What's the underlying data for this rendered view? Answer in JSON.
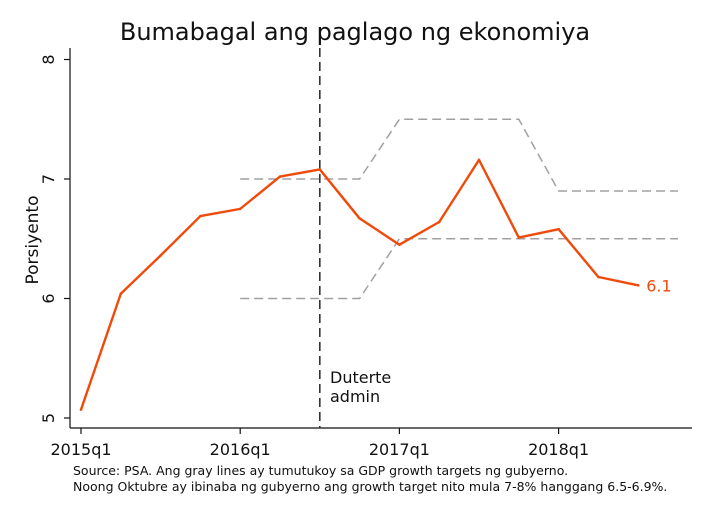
{
  "chart_data": {
    "type": "line",
    "title": "Bumabagal ang paglago ng ekonomiya",
    "ylabel": "Porsiyento",
    "xlabel": "",
    "ylim": [
      5,
      8
    ],
    "yticks": [
      5,
      6,
      7,
      8
    ],
    "xticks": [
      "2015q1",
      "2016q1",
      "2017q1",
      "2018q1"
    ],
    "x": [
      "2015q1",
      "2015q2",
      "2015q3",
      "2015q4",
      "2016q1",
      "2016q2",
      "2016q3",
      "2016q4",
      "2017q1",
      "2017q2",
      "2017q3",
      "2017q4",
      "2018q1",
      "2018q2",
      "2018q3"
    ],
    "series": [
      {
        "values": [
          5.07,
          6.04,
          6.36,
          6.69,
          6.75,
          7.02,
          7.08,
          6.67,
          6.45,
          6.64,
          7.16,
          6.51,
          6.58,
          6.18,
          6.11
        ],
        "color": "#f04a0a",
        "end_label": "6.1"
      }
    ],
    "target_bands": [
      {
        "color": "#a0a0a0",
        "upper": [
          [
            "2016q1",
            7
          ],
          [
            "2016q4",
            7
          ],
          [
            "2017q1",
            7.5
          ],
          [
            "2017q4",
            7.5
          ],
          [
            "2018q1",
            6.9
          ],
          [
            "2018q4",
            6.9
          ]
        ],
        "lower": [
          [
            "2016q1",
            6
          ],
          [
            "2016q4",
            6
          ],
          [
            "2017q1",
            6.5
          ],
          [
            "2018q4",
            6.5
          ]
        ]
      }
    ],
    "annotations": [
      {
        "x": "2016q3",
        "type": "vline",
        "label_lines": [
          "Duterte",
          "admin"
        ]
      }
    ],
    "grid": false,
    "source_lines": [
      "Source: PSA. Ang gray lines ay tumutukoy sa GDP growth targets ng gubyerno.",
      "Noong Oktubre ay ibinaba ng gubyerno ang growth target nito mula 7-8% hanggang 6.5-6.9%."
    ]
  }
}
